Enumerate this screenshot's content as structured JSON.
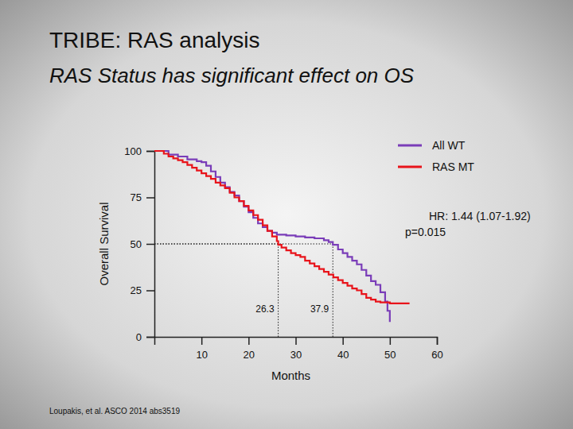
{
  "chart_data": {
    "type": "line",
    "title": "TRIBE: RAS analysis",
    "subtitle": "RAS Status has significant effect on OS",
    "x_label": "Months",
    "y_label": "Overall Survival",
    "xlim": [
      0,
      60
    ],
    "ylim": [
      0,
      100
    ],
    "xticks": [
      10,
      20,
      30,
      40,
      50,
      60
    ],
    "yticks": [
      0,
      25,
      50,
      75,
      100
    ],
    "grid": false,
    "legend": "top-right",
    "line_style": "step",
    "reference_line": 50,
    "series": [
      {
        "name": "All WT",
        "color": "#7a3db8",
        "median": 37.9,
        "x": [
          0,
          2,
          3,
          5,
          7,
          9,
          10,
          11,
          12,
          13,
          14,
          15,
          16,
          17,
          18,
          19,
          20,
          21,
          22,
          23,
          24,
          25,
          26,
          28,
          30,
          32,
          34,
          36,
          37,
          37.9,
          39,
          40,
          41,
          42,
          43,
          44,
          45,
          46,
          47,
          48,
          49,
          49.5,
          50
        ],
        "values": [
          100,
          100,
          98,
          97,
          95.5,
          94.5,
          94,
          92,
          89,
          86,
          83,
          80.5,
          78,
          76,
          73,
          70,
          67,
          64,
          61,
          59,
          57,
          56,
          55,
          54.5,
          54,
          53.5,
          53,
          52,
          51,
          49.5,
          47,
          45,
          43,
          41,
          39,
          36,
          33,
          30,
          28,
          24,
          19,
          14,
          8
        ]
      },
      {
        "name": "RAS MT",
        "color": "#e8141b",
        "median": 26.3,
        "x": [
          0,
          1,
          2,
          3,
          4,
          5,
          6,
          7,
          8,
          9,
          10,
          11,
          12,
          13,
          14,
          15,
          16,
          17,
          18,
          19,
          20,
          21,
          22,
          23,
          24,
          25,
          26,
          26.3,
          27,
          28,
          29,
          30,
          31,
          32,
          33,
          34,
          35,
          36,
          37,
          38,
          39,
          40,
          41,
          42,
          43,
          44,
          45,
          46,
          47,
          48,
          50,
          52,
          54
        ],
        "values": [
          100,
          100,
          98.5,
          97,
          96,
          95,
          94,
          92.5,
          91,
          89.5,
          88,
          86.5,
          85,
          83,
          81.5,
          80,
          77.5,
          75,
          73,
          70.5,
          68,
          65.5,
          63,
          60,
          57,
          54,
          51.5,
          49.5,
          48,
          46.5,
          45,
          44,
          43,
          41,
          39.5,
          38,
          36.5,
          35,
          33.5,
          32,
          30.5,
          29,
          27.5,
          26,
          25,
          23,
          21,
          20,
          19,
          18.5,
          18,
          18,
          17.5
        ]
      }
    ],
    "annotations": [
      "HR: 1.44 (1.07-1.92)",
      "p=0.015"
    ],
    "source": "Loupakis, et al. ASCO 2014 abs3519"
  }
}
